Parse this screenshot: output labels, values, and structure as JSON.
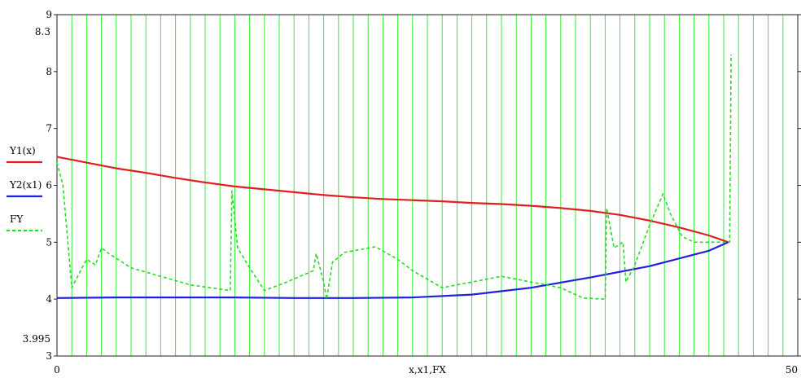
{
  "chart_data": {
    "type": "line",
    "xlabel": "x,x1,FX",
    "title": "",
    "xlim": [
      0,
      50
    ],
    "ylim": [
      3,
      9
    ],
    "x_ticks": [
      {
        "value": 0,
        "label": "0"
      },
      {
        "value": 50,
        "label": "50"
      }
    ],
    "y_ticks": [
      {
        "value": 9,
        "label": "9"
      },
      {
        "value": 8,
        "label": "8"
      },
      {
        "value": 7,
        "label": "7"
      },
      {
        "value": 6,
        "label": "6"
      },
      {
        "value": 5,
        "label": "5"
      },
      {
        "value": 4,
        "label": "4"
      },
      {
        "value": 3,
        "label": "3"
      }
    ],
    "y_marker_labels": [
      {
        "value": 8.7,
        "label": "8.3"
      },
      {
        "value": 3.3,
        "label": "3.995"
      }
    ],
    "vertical_grid": {
      "start": 0,
      "end": 50,
      "step": 1,
      "color": "#33ee33"
    },
    "legend": {
      "placement": "left-center"
    },
    "series": [
      {
        "name": "Y1(x)",
        "color": "#e02020",
        "style": "solid",
        "x": [
          0,
          2,
          4,
          6,
          8,
          10,
          12,
          14,
          16,
          18,
          20,
          22,
          24,
          26,
          28,
          30,
          32,
          34,
          36,
          38,
          40,
          42,
          44,
          45.3
        ],
        "y": [
          6.5,
          6.4,
          6.3,
          6.22,
          6.13,
          6.05,
          5.98,
          5.93,
          5.88,
          5.83,
          5.79,
          5.76,
          5.74,
          5.72,
          5.69,
          5.67,
          5.64,
          5.6,
          5.55,
          5.48,
          5.38,
          5.26,
          5.12,
          5.0
        ]
      },
      {
        "name": "Y2(x1)",
        "color": "#2020dd",
        "style": "solid",
        "x": [
          0,
          4,
          8,
          12,
          16,
          20,
          24,
          28,
          32,
          36,
          40,
          44,
          45.3
        ],
        "y": [
          4.02,
          4.03,
          4.03,
          4.03,
          4.02,
          4.02,
          4.03,
          4.08,
          4.2,
          4.38,
          4.58,
          4.85,
          5.0
        ]
      },
      {
        "name": "FY",
        "color": "#22dd22",
        "style": "dashed",
        "x": [
          0,
          0.4,
          1.0,
          1.4,
          2.0,
          2.6,
          3.0,
          3.5,
          5.0,
          7.0,
          9.0,
          11.7,
          11.8,
          12.2,
          13.0,
          14.0,
          15.5,
          17.3,
          17.5,
          18.0,
          18.2,
          18.6,
          19.4,
          21.5,
          23.0,
          24.0,
          26.0,
          28.0,
          30.0,
          32.0,
          34.0,
          35.5,
          37.0,
          37.1,
          37.6,
          38.2,
          38.4,
          39.0,
          40.0,
          40.9,
          41.4,
          42.2,
          43.0,
          44.0,
          45.3,
          45.4,
          45.5
        ],
        "y": [
          6.4,
          6.0,
          4.2,
          4.4,
          4.7,
          4.6,
          4.9,
          4.8,
          4.55,
          4.4,
          4.25,
          4.15,
          5.9,
          4.9,
          4.55,
          4.15,
          4.3,
          4.5,
          4.8,
          4.3,
          4.0,
          4.65,
          4.82,
          4.92,
          4.7,
          4.5,
          4.2,
          4.3,
          4.4,
          4.3,
          4.2,
          4.02,
          4.0,
          5.6,
          4.9,
          5.0,
          4.3,
          4.6,
          5.3,
          5.85,
          5.5,
          5.1,
          5.0,
          5.0,
          5.0,
          5.0,
          8.3
        ]
      }
    ]
  }
}
